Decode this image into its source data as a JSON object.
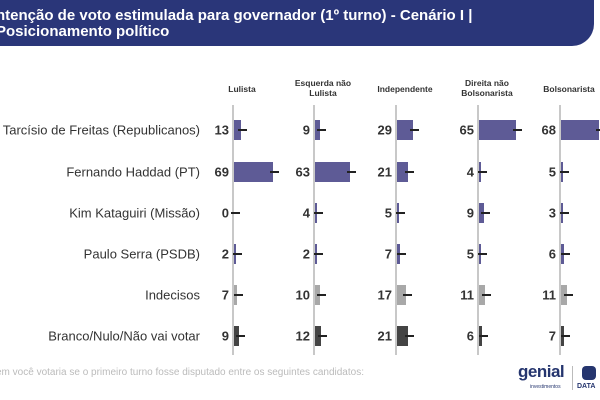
{
  "header": {
    "title": "ntenção de voto estimulada para governador (1º turno) - Cenário I |\nPosicionamento político"
  },
  "footnote": "em você votaria se o primeiro turno fosse disputado entre os seguintes candidatos:",
  "logo": {
    "brand": "genial",
    "sub": "investimentos",
    "partner": "DATA"
  },
  "colors": {
    "banner": "#2a3679",
    "candidate": "#5e5b96",
    "undecided": "#a8a8a8",
    "null": "#444444"
  },
  "chart_data": {
    "type": "bar",
    "orientation": "horizontal-small-multiples",
    "groups": [
      "Lulista",
      "Esquerda não Lulista",
      "Independente",
      "Direita não Bolsonarista",
      "Bolsonarista"
    ],
    "categories": [
      "Tarcísio de Freitas (Republicanos)",
      "Fernando Haddad (PT)",
      "Kim Kataguiri (Missão)",
      "Paulo Serra (PSDB)",
      "Indecisos",
      "Branco/Nulo/Não vai votar"
    ],
    "series": [
      {
        "name": "Lulista",
        "values": [
          13,
          69,
          0,
          2,
          7,
          9
        ]
      },
      {
        "name": "Esquerda não Lulista",
        "values": [
          9,
          63,
          4,
          2,
          10,
          12
        ]
      },
      {
        "name": "Independente",
        "values": [
          29,
          21,
          5,
          7,
          17,
          21
        ]
      },
      {
        "name": "Direita não Bolsonarista",
        "values": [
          65,
          4,
          9,
          5,
          11,
          6
        ]
      },
      {
        "name": "Bolsonarista",
        "values": [
          68,
          5,
          3,
          6,
          11,
          7
        ]
      }
    ],
    "error_bars": true,
    "unit": "%"
  }
}
